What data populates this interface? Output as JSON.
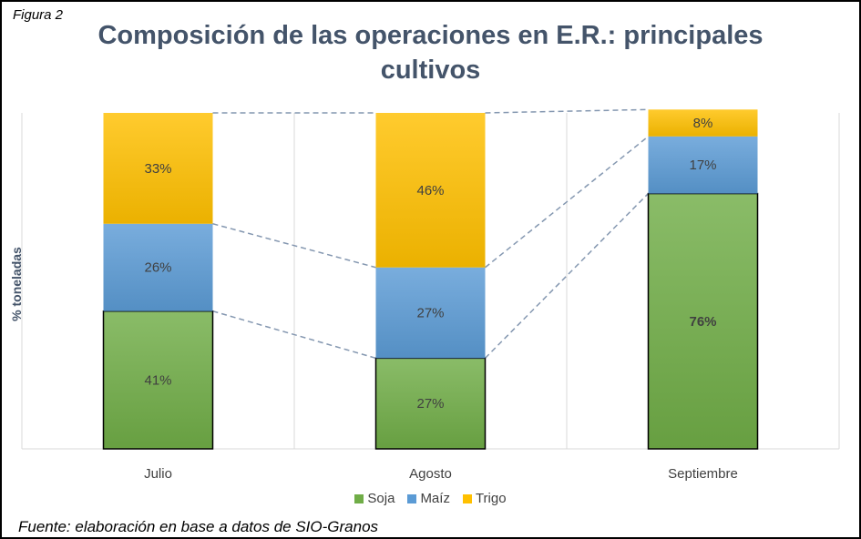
{
  "figure_label": "Figura 2",
  "source_note": "Fuente: elaboración en base a datos de SIO-Granos",
  "chart_data": {
    "type": "bar",
    "stacked": true,
    "normalized": true,
    "title": "Composición de las operaciones en E.R.: principales cultivos",
    "xlabel": "",
    "ylabel": "% toneladas",
    "categories": [
      "Julio",
      "Agosto",
      "Septiembre"
    ],
    "series": [
      {
        "name": "Soja",
        "values": [
          41,
          27,
          76
        ],
        "labels": [
          "41%",
          "27%",
          "76%"
        ],
        "color": "#70ad47"
      },
      {
        "name": "Maíz",
        "values": [
          26,
          27,
          17
        ],
        "labels": [
          "26%",
          "27%",
          "17%"
        ],
        "color": "#5b9bd5"
      },
      {
        "name": "Trigo",
        "values": [
          33,
          46,
          8
        ],
        "labels": [
          "33%",
          "46%",
          "8%"
        ],
        "color": "#ffc000"
      }
    ],
    "ylim": [
      0,
      100
    ],
    "grid": "vertical category separators",
    "series_lines": true,
    "legend": "bottom"
  }
}
